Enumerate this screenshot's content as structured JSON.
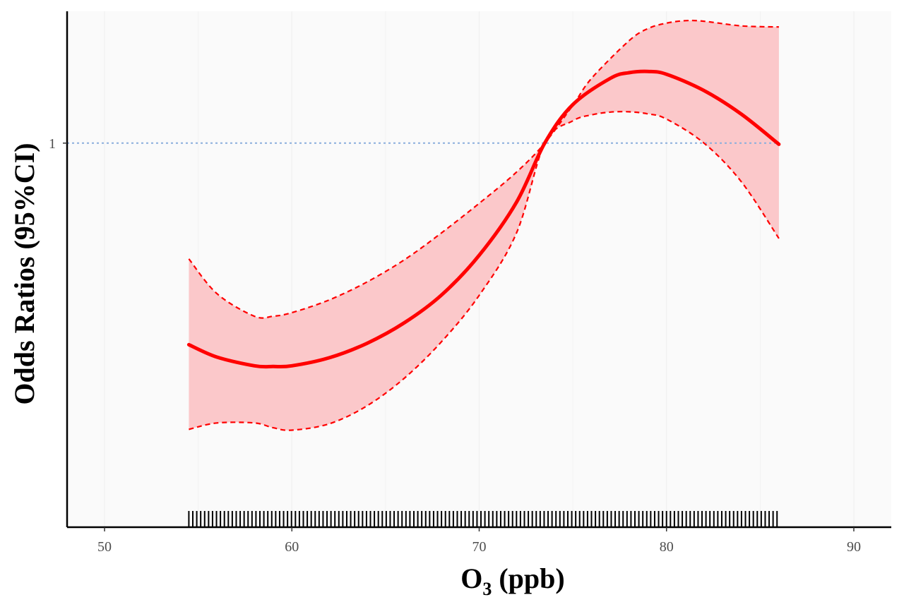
{
  "chart_data": {
    "type": "line",
    "x_label_main": "O",
    "x_label_sub": "3",
    "x_label_unit": " (ppb)",
    "ylabel": "Odds Ratios (95%CI)",
    "xlim": [
      48,
      92
    ],
    "ylim_log": [
      0.36,
      1.42
    ],
    "y_scale": "log",
    "x_ticks": [
      50,
      60,
      70,
      80,
      90
    ],
    "y_ticks": [
      1
    ],
    "reference_line": {
      "y": 1,
      "style": "dotted",
      "color": "#8aaedc"
    },
    "grid": true,
    "series": [
      {
        "role": "estimate",
        "color": "#ff0000",
        "x": [
          54.5,
          56,
          58,
          59,
          60,
          62,
          64,
          66,
          68,
          70,
          72,
          73.5,
          75,
          77,
          78,
          79,
          80,
          82,
          84,
          86
        ],
        "y": [
          0.585,
          0.566,
          0.553,
          0.552,
          0.553,
          0.565,
          0.587,
          0.62,
          0.668,
          0.742,
          0.855,
          1.0,
          1.108,
          1.188,
          1.206,
          1.21,
          1.201,
          1.15,
          1.08,
          0.997
        ]
      },
      {
        "role": "upper-ci",
        "color": "#ff0000",
        "x": [
          54.5,
          56,
          58,
          59,
          60,
          62,
          64,
          66,
          68,
          70,
          72,
          73.5,
          75,
          76,
          78,
          79,
          80,
          81,
          82,
          84,
          86
        ],
        "y": [
          0.735,
          0.67,
          0.631,
          0.631,
          0.637,
          0.659,
          0.691,
          0.733,
          0.788,
          0.852,
          0.926,
          1.0,
          1.106,
          1.188,
          1.313,
          1.356,
          1.376,
          1.385,
          1.383,
          1.366,
          1.362
        ]
      },
      {
        "role": "lower-ci",
        "color": "#ff0000",
        "x": [
          54.5,
          56,
          58,
          59,
          60,
          62,
          64,
          66,
          68,
          70,
          72,
          73.5,
          75,
          76,
          77,
          78,
          79,
          80,
          82,
          84,
          86
        ],
        "y": [
          0.467,
          0.475,
          0.475,
          0.469,
          0.466,
          0.474,
          0.497,
          0.535,
          0.59,
          0.667,
          0.788,
          1.0,
          1.061,
          1.078,
          1.086,
          1.087,
          1.081,
          1.066,
          1.0,
          0.902,
          0.776
        ]
      }
    ],
    "ci_fill_color": "#fbc8ca",
    "panel_background": "#fafafa",
    "rug": {
      "x_start": 54.5,
      "x_end": 85.9,
      "count": 150,
      "color": "#000000"
    }
  }
}
